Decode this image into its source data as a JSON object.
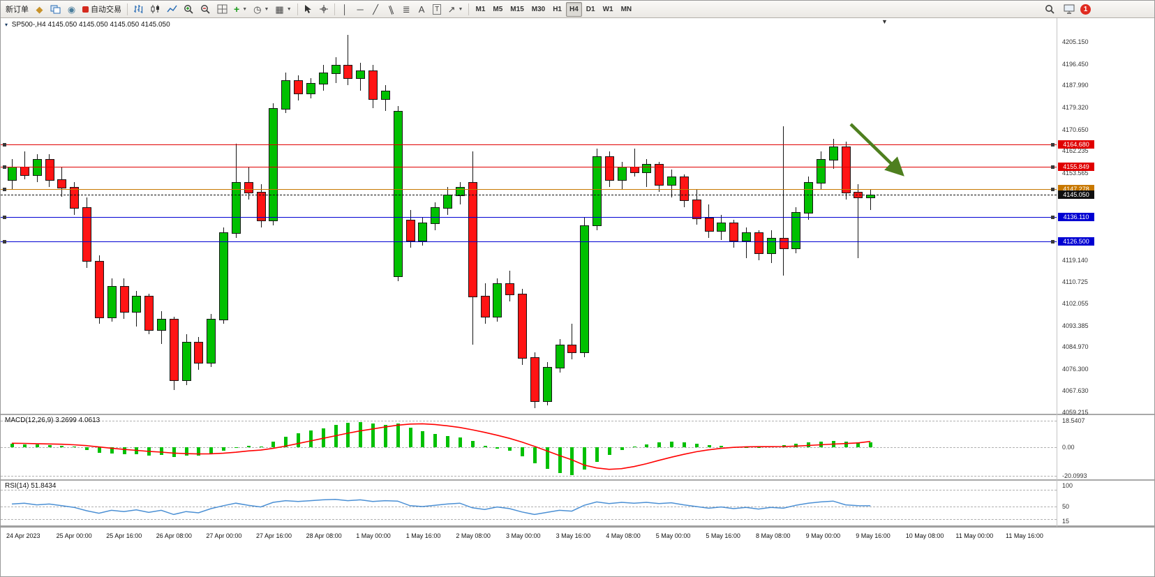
{
  "toolbar": {
    "new_order_label": "新订单",
    "autotrade_label": "自动交易",
    "timeframes": [
      "M1",
      "M5",
      "M15",
      "M30",
      "H1",
      "H4",
      "D1",
      "W1",
      "MN"
    ],
    "active_timeframe": "H4",
    "notification_count": "1",
    "icon_glyphs": {
      "text_tool": "A",
      "textbox_tool": "T"
    }
  },
  "chart": {
    "symbol_period": "SP500-,H4",
    "ohlc": "4145.050 4145.050 4145.050 4145.050",
    "price_axis_ticks": [
      "4205.150",
      "4196.450",
      "4187.990",
      "4179.320",
      "4170.650",
      "4162.235",
      "4153.565",
      "4119.140",
      "4110.725",
      "4102.055",
      "4093.385",
      "4084.970",
      "4076.300",
      "4067.630",
      "4059.215"
    ],
    "horizontal_lines": [
      {
        "price": 4164.68,
        "label": "4164.680",
        "color": "#e00000",
        "kind": "resistance"
      },
      {
        "price": 4155.849,
        "label": "4155.849",
        "color": "#e00000",
        "kind": "resistance"
      },
      {
        "price": 4147.278,
        "label": "4147.278",
        "color": "#c87800",
        "kind": "pivot"
      },
      {
        "price": 4136.11,
        "label": "4136.110",
        "color": "#0000d2",
        "kind": "support"
      },
      {
        "price": 4126.5,
        "label": "4126.500",
        "color": "#0000d2",
        "kind": "support"
      }
    ],
    "current_price": {
      "price": 4145.05,
      "label": "4145.050",
      "color": "#101010"
    },
    "time_axis_ticks": [
      "24 Apr 2023",
      "25 Apr 00:00",
      "25 Apr 16:00",
      "26 Apr 08:00",
      "27 Apr 00:00",
      "27 Apr 16:00",
      "28 Apr 08:00",
      "1 May 00:00",
      "1 May 16:00",
      "2 May 08:00",
      "3 May 00:00",
      "3 May 16:00",
      "4 May 08:00",
      "5 May 00:00",
      "5 May 16:00",
      "8 May 08:00",
      "9 May 00:00",
      "9 May 16:00",
      "10 May 08:00",
      "11 May 00:00",
      "11 May 16:00"
    ]
  },
  "chart_data": {
    "type": "candlestick",
    "symbol": "SP500-",
    "timeframe": "H4",
    "up_color": "#00c000",
    "down_color": "#ff1414",
    "candles_ohlc": [
      [
        4151,
        4159,
        4147,
        4156
      ],
      [
        4156,
        4162,
        4151,
        4153
      ],
      [
        4153,
        4161,
        4150,
        4159
      ],
      [
        4159,
        4161,
        4148,
        4151
      ],
      [
        4151,
        4156,
        4144,
        4148
      ],
      [
        4148,
        4150,
        4137,
        4140
      ],
      [
        4140,
        4144,
        4116,
        4119
      ],
      [
        4119,
        4121,
        4094,
        4097
      ],
      [
        4097,
        4112,
        4095,
        4109
      ],
      [
        4109,
        4112,
        4096,
        4099
      ],
      [
        4099,
        4107,
        4093,
        4105
      ],
      [
        4105,
        4106,
        4090,
        4092
      ],
      [
        4092,
        4099,
        4086,
        4096
      ],
      [
        4096,
        4097,
        4068,
        4072
      ],
      [
        4072,
        4090,
        4070,
        4087
      ],
      [
        4087,
        4089,
        4076,
        4079
      ],
      [
        4079,
        4098,
        4077,
        4096
      ],
      [
        4096,
        4132,
        4094,
        4130
      ],
      [
        4130,
        4165,
        4128,
        4150
      ],
      [
        4150,
        4156,
        4143,
        4146
      ],
      [
        4146,
        4149,
        4132,
        4135
      ],
      [
        4135,
        4181,
        4133,
        4179
      ],
      [
        4179,
        4193,
        4177,
        4190
      ],
      [
        4190,
        4192,
        4182,
        4185
      ],
      [
        4185,
        4191,
        4183,
        4189
      ],
      [
        4189,
        4196,
        4186,
        4193
      ],
      [
        4193,
        4199,
        4189,
        4196
      ],
      [
        4196,
        4208,
        4188,
        4191
      ],
      [
        4191,
        4197,
        4186,
        4194
      ],
      [
        4194,
        4196,
        4179,
        4183
      ],
      [
        4183,
        4188,
        4178,
        4186
      ],
      [
        4113,
        4180,
        4111,
        4178
      ],
      [
        4135,
        4139,
        4124,
        4127
      ],
      [
        4127,
        4136,
        4125,
        4134
      ],
      [
        4134,
        4142,
        4131,
        4140
      ],
      [
        4140,
        4148,
        4137,
        4145
      ],
      [
        4145,
        4150,
        4141,
        4148
      ],
      [
        4150,
        4162,
        4086,
        4105
      ],
      [
        4105,
        4110,
        4094,
        4097
      ],
      [
        4097,
        4112,
        4095,
        4110
      ],
      [
        4110,
        4115,
        4103,
        4106
      ],
      [
        4106,
        4108,
        4078,
        4081
      ],
      [
        4081,
        4083,
        4061,
        4064
      ],
      [
        4064,
        4079,
        4062,
        4077
      ],
      [
        4077,
        4088,
        4075,
        4086
      ],
      [
        4086,
        4094,
        4080,
        4083
      ],
      [
        4083,
        4136,
        4081,
        4133
      ],
      [
        4133,
        4163,
        4131,
        4160
      ],
      [
        4160,
        4162,
        4148,
        4151
      ],
      [
        4151,
        4158,
        4147,
        4156
      ],
      [
        4156,
        4163,
        4152,
        4154
      ],
      [
        4154,
        4159,
        4148,
        4157
      ],
      [
        4157,
        4158,
        4146,
        4149
      ],
      [
        4149,
        4155,
        4144,
        4152
      ],
      [
        4152,
        4153,
        4140,
        4143
      ],
      [
        4143,
        4147,
        4133,
        4136
      ],
      [
        4136,
        4141,
        4128,
        4131
      ],
      [
        4131,
        4137,
        4127,
        4134
      ],
      [
        4134,
        4135,
        4124,
        4127
      ],
      [
        4127,
        4132,
        4120,
        4130
      ],
      [
        4130,
        4131,
        4119,
        4122
      ],
      [
        4122,
        4131,
        4118,
        4128
      ],
      [
        4128,
        4172,
        4113,
        4124
      ],
      [
        4124,
        4140,
        4122,
        4138
      ],
      [
        4138,
        4152,
        4135,
        4150
      ],
      [
        4150,
        4162,
        4147,
        4159
      ],
      [
        4159,
        4167,
        4155,
        4164
      ],
      [
        4164,
        4166,
        4143,
        4146
      ],
      [
        4146,
        4149,
        4120,
        4144
      ],
      [
        4144,
        4147,
        4139,
        4145.05
      ]
    ],
    "indicators": [
      {
        "name": "MACD",
        "header": "MACD(12,26,9) 3.2699 4.0613",
        "scale_labels": [
          "18.5407",
          "0.00",
          "-20.0993"
        ],
        "histogram_color": "#00c000",
        "signal_color": "#ff0000",
        "histogram": [
          2.4,
          2.1,
          1.9,
          1.6,
          1.1,
          0.3,
          -1.8,
          -3.8,
          -4.4,
          -4.9,
          -5.1,
          -5.6,
          -5.3,
          -6.8,
          -6.0,
          -5.6,
          -4.4,
          -2.6,
          -0.6,
          0.8,
          0.4,
          3.8,
          7.2,
          9.6,
          11.6,
          13.4,
          15.4,
          17.0,
          17.6,
          16.6,
          15.8,
          16.4,
          13.8,
          11.4,
          9.4,
          8.0,
          6.8,
          4.2,
          1.2,
          -0.8,
          -2.6,
          -6.5,
          -11.0,
          -15.0,
          -18.0,
          -19.5,
          -15.5,
          -10.0,
          -5.5,
          -2.0,
          0.6,
          2.2,
          3.2,
          3.7,
          3.4,
          2.6,
          1.6,
          0.8,
          0.2,
          0.0,
          -0.4,
          0.4,
          1.4,
          2.5,
          3.4,
          4.1,
          4.4,
          3.9,
          3.5,
          3.27
        ],
        "signal": [
          2.8,
          2.7,
          2.5,
          2.3,
          2.1,
          1.7,
          1.1,
          0.2,
          -0.7,
          -1.5,
          -2.2,
          -2.9,
          -3.4,
          -4.1,
          -4.5,
          -4.7,
          -4.6,
          -4.2,
          -3.5,
          -2.6,
          -2.0,
          -0.8,
          0.8,
          2.6,
          4.4,
          6.2,
          8.0,
          9.8,
          11.4,
          12.8,
          14.2,
          15.4,
          16.2,
          16.4,
          15.9,
          15.0,
          13.8,
          12.2,
          10.4,
          8.4,
          6.2,
          3.6,
          0.6,
          -2.6,
          -5.8,
          -8.8,
          -12.5,
          -14.5,
          -15.5,
          -15.0,
          -13.5,
          -11.5,
          -9.2,
          -7.0,
          -5.0,
          -3.2,
          -1.8,
          -0.8,
          -0.1,
          0.3,
          0.4,
          0.4,
          0.5,
          0.8,
          1.2,
          1.7,
          2.2,
          2.6,
          3.0,
          4.06
        ]
      },
      {
        "name": "RSI",
        "header": "RSI(14) 51.8434",
        "scale_labels": [
          "100",
          "50",
          "15"
        ],
        "line_color": "#4a8fd4",
        "values": [
          56,
          58,
          54,
          56,
          52,
          48,
          40,
          34,
          41,
          38,
          42,
          36,
          41,
          31,
          38,
          35,
          45,
          52,
          58,
          53,
          49,
          60,
          64,
          62,
          64,
          66,
          67,
          64,
          66,
          62,
          64,
          63,
          52,
          50,
          53,
          56,
          58,
          47,
          43,
          49,
          45,
          37,
          31,
          36,
          41,
          39,
          53,
          61,
          57,
          60,
          58,
          60,
          57,
          59,
          54,
          50,
          46,
          49,
          45,
          48,
          44,
          48,
          46,
          53,
          58,
          61,
          63,
          54,
          52,
          51.84
        ]
      }
    ]
  },
  "annotation": {
    "type": "arrow",
    "color": "#4e7f1f",
    "direction": "down-right"
  }
}
